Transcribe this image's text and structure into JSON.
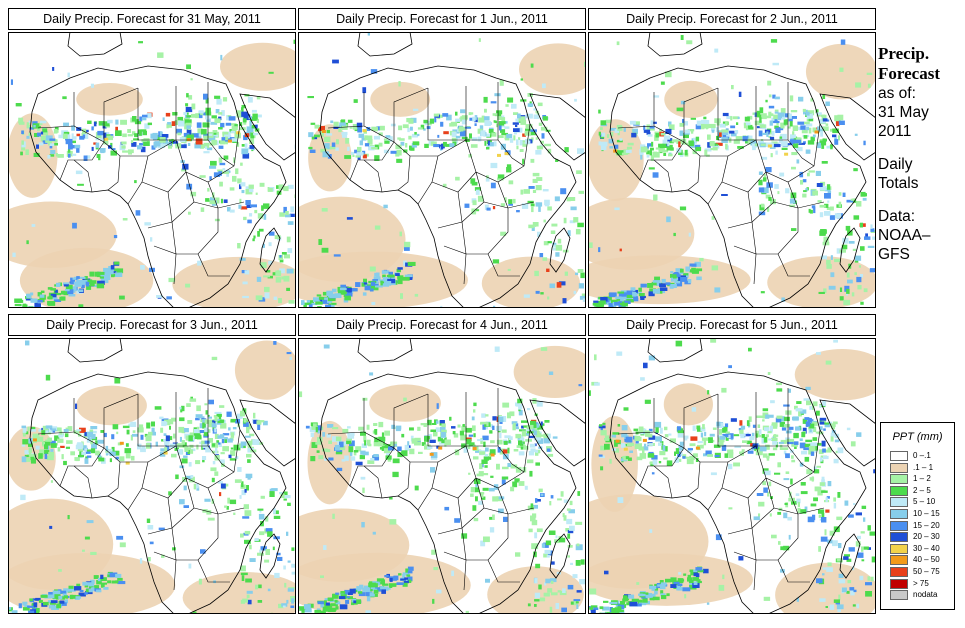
{
  "panels": [
    {
      "title": "Daily Precip. Forecast for  31 May, 2011",
      "seed": 11,
      "intensity": 1.0
    },
    {
      "title": "Daily Precip. Forecast for  1 Jun., 2011",
      "seed": 27,
      "intensity": 0.85
    },
    {
      "title": "Daily Precip. Forecast for  2 Jun., 2011",
      "seed": 43,
      "intensity": 1.05
    },
    {
      "title": "Daily Precip. Forecast for  3 Jun., 2011",
      "seed": 59,
      "intensity": 1.0
    },
    {
      "title": "Daily Precip. Forecast for  4 Jun., 2011",
      "seed": 71,
      "intensity": 0.95
    },
    {
      "title": "Daily Precip. Forecast for  5 Jun., 2011",
      "seed": 89,
      "intensity": 1.05
    }
  ],
  "side": {
    "heading_line1": "Precip.",
    "heading_line2": "Forecast",
    "asof_label": "as of:",
    "asof_date": "31 May",
    "asof_year": "2011",
    "totals_line1": "Daily",
    "totals_line2": "Totals",
    "data_label": "Data:",
    "data_source_line1": "NOAA–",
    "data_source_line2": "GFS"
  },
  "legend": {
    "title": "PPT (mm)",
    "items": [
      {
        "label": "0 –.1",
        "color": "#ffffff"
      },
      {
        "label": ".1 – 1",
        "color": "#ecd3b3"
      },
      {
        "label": "1 – 2",
        "color": "#a6f2a6"
      },
      {
        "label": "2 – 5",
        "color": "#4ddb4d"
      },
      {
        "label": "5 – 10",
        "color": "#bfeaf7"
      },
      {
        "label": "10 – 15",
        "color": "#87ceeb"
      },
      {
        "label": "15 – 20",
        "color": "#4a8ff0"
      },
      {
        "label": "20 – 30",
        "color": "#1f4fd6"
      },
      {
        "label": "30 – 40",
        "color": "#f2d24a"
      },
      {
        "label": "40 – 50",
        "color": "#f29a1a"
      },
      {
        "label": "50 – 75",
        "color": "#e8401a"
      },
      {
        "label": "> 75",
        "color": "#c00000"
      },
      {
        "label": "nodata",
        "color": "#c9c9c9"
      }
    ]
  }
}
